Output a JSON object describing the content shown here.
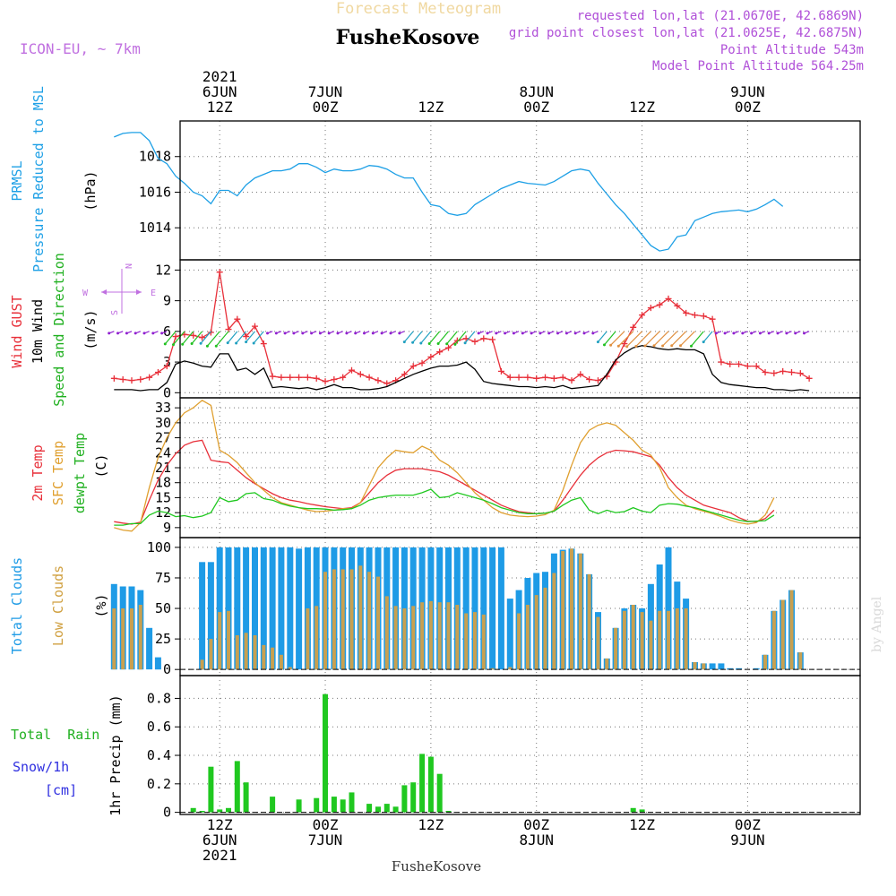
{
  "header": {
    "title": "Forecast Meteogram",
    "location": "FusheKosove",
    "model": "ICON-EU, ~ 7km",
    "requested": "requested lon,lat (21.0670E, 42.6869N)",
    "closest": "grid point closest lon,lat (21.0625E, 42.6875N)",
    "altitude": "Point Altitude 543m",
    "model_altitude": "Model Point Altitude 564.25m",
    "watermark": "by Angel",
    "footer": "FusheKosove"
  },
  "time_axis": {
    "top": [
      {
        "h": 12,
        "lines": [
          "2021",
          "6JUN",
          "12Z"
        ]
      },
      {
        "h": 24,
        "lines": [
          "7JUN",
          "00Z"
        ]
      },
      {
        "h": 36,
        "lines": [
          "12Z"
        ]
      },
      {
        "h": 48,
        "lines": [
          "8JUN",
          "00Z"
        ]
      },
      {
        "h": 60,
        "lines": [
          "12Z"
        ]
      },
      {
        "h": 72,
        "lines": [
          "9JUN",
          "00Z"
        ]
      }
    ],
    "bottom": [
      {
        "h": 12,
        "lines": [
          "12Z",
          "6JUN",
          "2021"
        ]
      },
      {
        "h": 24,
        "lines": [
          "00Z",
          "7JUN"
        ]
      },
      {
        "h": 36,
        "lines": [
          "12Z"
        ]
      },
      {
        "h": 48,
        "lines": [
          "00Z",
          "8JUN"
        ]
      },
      {
        "h": 60,
        "lines": [
          "12Z"
        ]
      },
      {
        "h": 72,
        "lines": [
          "00Z",
          "9JUN"
        ]
      }
    ]
  },
  "panels": {
    "pressure": {
      "label1": "PRMSL",
      "label2": "Pressure Reduced to MSL",
      "unit": "(hPa)",
      "color": "#1ea0e6"
    },
    "wind": {
      "label_gust": "Wind GUST",
      "label_wind": "10m Wind",
      "label_dir": "Speed and Direction",
      "unit": "(m/s)",
      "compass_n": "N",
      "compass_w": "W",
      "compass_e": "E",
      "compass_s": "S",
      "gust_color": "#e8303a",
      "wind_color": "#000000"
    },
    "temp": {
      "label_t": "2m Temp",
      "label_sfc": "SFC Temp",
      "label_dew": "dewpt Temp",
      "unit": "(C)",
      "t_color": "#e8303a",
      "sfc_color": "#e0a030",
      "dew_color": "#20c820"
    },
    "clouds": {
      "label_total": "Total Clouds",
      "label_low": "Low Clouds",
      "unit": "(%)",
      "total_color": "#1e9be6",
      "low_color": "#c8a050"
    },
    "precip": {
      "label_rain": "Total  Rain",
      "label_snow": "Snow/1h",
      "label_cm": "[cm]",
      "label_axis": "1hr Precip (mm)",
      "rain_color": "#20c820",
      "snow_color": "#3030e0"
    }
  },
  "chart_data": [
    {
      "type": "line",
      "name": "pressure",
      "x_start_hours_from_6JUN00Z": 0,
      "x_step_hours": 1,
      "ylim": [
        1012.2,
        1020
      ],
      "yticks": [
        1014,
        1016,
        1018
      ],
      "series": [
        {
          "name": "PRMSL",
          "values": [
            1019.1,
            1019.3,
            1019.35,
            1019.35,
            1018.9,
            1017.9,
            1017.6,
            1016.9,
            1016.5,
            1016.0,
            1015.8,
            1015.35,
            1016.1,
            1016.1,
            1015.8,
            1016.4,
            1016.8,
            1017.0,
            1017.2,
            1017.2,
            1017.3,
            1017.6,
            1017.6,
            1017.4,
            1017.1,
            1017.3,
            1017.2,
            1017.2,
            1017.3,
            1017.5,
            1017.45,
            1017.3,
            1017.0,
            1016.8,
            1016.8,
            1016.0,
            1015.3,
            1015.2,
            1014.8,
            1014.7,
            1014.8,
            1015.3,
            1015.6,
            1015.9,
            1016.2,
            1016.4,
            1016.6,
            1016.5,
            1016.45,
            1016.4,
            1016.6,
            1016.9,
            1017.2,
            1017.3,
            1017.2,
            1016.5,
            1015.9,
            1015.3,
            1014.8,
            1014.2,
            1013.6,
            1013.0,
            1012.7,
            1012.8,
            1013.5,
            1013.6,
            1014.4,
            1014.6,
            1014.8,
            1014.9,
            1014.95,
            1015.0,
            1014.9,
            1015.05,
            1015.3,
            1015.6,
            1015.2
          ]
        }
      ]
    },
    {
      "type": "line",
      "name": "wind",
      "x_start_hours_from_6JUN00Z": 0,
      "x_step_hours": 1,
      "ylim": [
        -0.5,
        13
      ],
      "yticks": [
        0,
        3,
        6,
        9,
        12
      ],
      "series": [
        {
          "name": "Wind GUST",
          "values": [
            1.4,
            1.3,
            1.2,
            1.3,
            1.5,
            2.0,
            2.6,
            5.5,
            5.7,
            5.6,
            5.4,
            5.9,
            11.8,
            6.2,
            7.2,
            5.5,
            6.5,
            4.8,
            1.6,
            1.5,
            1.5,
            1.5,
            1.5,
            1.4,
            1.1,
            1.3,
            1.5,
            2.2,
            1.8,
            1.5,
            1.2,
            0.9,
            1.2,
            1.8,
            2.6,
            2.9,
            3.5,
            4.0,
            4.4,
            5.1,
            5.3,
            5.0,
            5.3,
            5.2,
            2.1,
            1.5,
            1.5,
            1.5,
            1.4,
            1.5,
            1.4,
            1.5,
            1.2,
            1.8,
            1.3,
            1.2,
            1.6,
            3.0,
            4.8,
            6.4,
            7.6,
            8.3,
            8.6,
            9.2,
            8.5,
            7.8,
            7.6,
            7.5,
            7.2,
            3.0,
            2.8,
            2.8,
            2.6,
            2.6,
            2.0,
            1.9,
            2.1,
            2.0,
            1.9,
            1.4
          ]
        },
        {
          "name": "10m Wind",
          "values": [
            0.3,
            0.3,
            0.3,
            0.2,
            0.3,
            0.3,
            1.0,
            2.8,
            3.1,
            2.9,
            2.6,
            2.5,
            3.8,
            3.8,
            2.2,
            2.4,
            1.8,
            2.4,
            0.5,
            0.6,
            0.5,
            0.4,
            0.5,
            0.3,
            0.5,
            0.8,
            0.5,
            0.5,
            0.3,
            0.3,
            0.4,
            0.6,
            1.0,
            1.4,
            1.8,
            2.1,
            2.4,
            2.6,
            2.6,
            2.7,
            3.0,
            2.3,
            1.1,
            0.9,
            0.8,
            0.7,
            0.6,
            0.6,
            0.5,
            0.6,
            0.5,
            0.7,
            0.4,
            0.5,
            0.6,
            0.7,
            1.8,
            3.2,
            3.9,
            4.4,
            4.6,
            4.5,
            4.3,
            4.2,
            4.3,
            4.2,
            4.2,
            3.8,
            1.8,
            1.0,
            0.8,
            0.7,
            0.6,
            0.5,
            0.5,
            0.3,
            0.3,
            0.2,
            0.3,
            0.2
          ]
        }
      ]
    },
    {
      "type": "line",
      "name": "temperature",
      "x_start_hours_from_6JUN00Z": 0,
      "x_step_hours": 1,
      "ylim": [
        7,
        35
      ],
      "yticks": [
        9,
        12,
        15,
        18,
        21,
        24,
        27,
        30,
        33
      ],
      "series": [
        {
          "name": "2m Temp",
          "values": [
            10.2,
            9.9,
            9.7,
            10.1,
            14.5,
            18.5,
            21.5,
            23.8,
            25.5,
            26.2,
            26.5,
            22.5,
            22.2,
            22.0,
            20.5,
            19.0,
            17.8,
            16.8,
            15.8,
            15.0,
            14.5,
            14.2,
            13.8,
            13.5,
            13.2,
            13.0,
            12.8,
            13.0,
            14.0,
            16.0,
            18.0,
            19.5,
            20.5,
            20.8,
            20.8,
            20.8,
            20.5,
            20.2,
            19.5,
            18.5,
            17.5,
            16.5,
            15.5,
            14.5,
            13.5,
            12.8,
            12.2,
            12.0,
            11.8,
            11.9,
            12.3,
            14.5,
            17.0,
            19.5,
            21.5,
            23.0,
            24.0,
            24.5,
            24.4,
            24.2,
            23.7,
            23.2,
            21.5,
            19.0,
            17.0,
            15.5,
            14.5,
            13.5,
            13.0,
            12.5,
            12.0,
            11.0,
            10.3,
            10.2,
            10.8,
            12.5
          ]
        },
        {
          "name": "SFC Temp",
          "values": [
            9.0,
            8.5,
            8.3,
            10.0,
            17.0,
            23.0,
            27.0,
            30.0,
            32.0,
            33.0,
            34.5,
            33.5,
            24.5,
            23.5,
            22.0,
            20.0,
            18.0,
            16.5,
            15.0,
            14.0,
            13.5,
            13.0,
            12.5,
            12.2,
            12.3,
            12.5,
            12.8,
            12.8,
            14.0,
            17.5,
            21.0,
            23.0,
            24.5,
            24.2,
            24.0,
            25.3,
            24.5,
            22.5,
            21.5,
            20.0,
            18.0,
            16.0,
            14.5,
            13.0,
            12.0,
            11.5,
            11.3,
            11.2,
            11.3,
            11.6,
            12.5,
            16.5,
            21.5,
            26.0,
            28.5,
            29.5,
            30.0,
            29.5,
            28.0,
            26.5,
            24.5,
            23.5,
            21.0,
            17.0,
            15.0,
            13.5,
            12.8,
            12.3,
            11.8,
            11.2,
            10.5,
            10.0,
            9.7,
            10.0,
            11.5,
            15.0
          ]
        },
        {
          "name": "dewpt Temp",
          "values": [
            9.5,
            9.5,
            9.8,
            9.8,
            11.5,
            12.3,
            12.0,
            11.2,
            11.4,
            11.0,
            11.3,
            12.0,
            15.0,
            14.2,
            14.5,
            15.8,
            16.0,
            14.8,
            14.5,
            13.8,
            13.3,
            13.0,
            12.8,
            12.8,
            12.7,
            12.5,
            12.6,
            12.8,
            13.5,
            14.5,
            15.0,
            15.3,
            15.5,
            15.5,
            15.5,
            16.0,
            16.7,
            15.0,
            15.2,
            16.0,
            15.5,
            15.0,
            14.5,
            13.8,
            13.0,
            12.5,
            12.0,
            11.8,
            11.8,
            11.9,
            12.3,
            13.5,
            14.5,
            15.0,
            12.5,
            11.8,
            12.5,
            12.0,
            12.2,
            13.0,
            12.3,
            12.0,
            13.5,
            13.8,
            13.7,
            13.3,
            13.0,
            12.5,
            12.0,
            11.5,
            11.0,
            10.5,
            10.2,
            10.3,
            10.4,
            11.5
          ]
        }
      ]
    },
    {
      "type": "bar",
      "name": "clouds",
      "x_start_hours_from_6JUN00Z": 0,
      "x_step_hours": 1,
      "ylim": [
        -5,
        108
      ],
      "yticks": [
        0,
        25,
        50,
        75,
        100
      ],
      "series": [
        {
          "name": "Total Clouds",
          "values": [
            70,
            68,
            68,
            65,
            34,
            10,
            0,
            0,
            0,
            0,
            88,
            88,
            100,
            100,
            100,
            100,
            100,
            100,
            100,
            100,
            100,
            99,
            100,
            100,
            100,
            100,
            100,
            100,
            100,
            100,
            100,
            100,
            100,
            100,
            100,
            100,
            100,
            100,
            100,
            100,
            100,
            100,
            100,
            100,
            100,
            58,
            65,
            75,
            79,
            80,
            95,
            98,
            99,
            95,
            78,
            47,
            9,
            34,
            50,
            53,
            50,
            70,
            86,
            100,
            72,
            58,
            6,
            5,
            5,
            5,
            1,
            1,
            0,
            1,
            12,
            48,
            57,
            65,
            14
          ]
        },
        {
          "name": "Low Clouds",
          "values": [
            50,
            50,
            50,
            53,
            0,
            0,
            0,
            0,
            0,
            0,
            8,
            25,
            47,
            48,
            28,
            30,
            28,
            20,
            18,
            12,
            2,
            0,
            50,
            52,
            80,
            82,
            82,
            82,
            85,
            80,
            76,
            60,
            52,
            50,
            52,
            55,
            56,
            55,
            55,
            53,
            46,
            47,
            45,
            1,
            0,
            2,
            46,
            53,
            61,
            67,
            79,
            97,
            99,
            95,
            78,
            43,
            9,
            34,
            48,
            53,
            47,
            40,
            48,
            48,
            50,
            50,
            6,
            5,
            0,
            0,
            0,
            0,
            0,
            0,
            12,
            48,
            57,
            65,
            14
          ]
        }
      ]
    },
    {
      "type": "bar",
      "name": "precipitation",
      "x_start_hours_from_6JUN00Z": 0,
      "x_step_hours": 1,
      "ylim": [
        -0.015,
        0.96
      ],
      "yticks": [
        0,
        0.2,
        0.4,
        0.6,
        0.8
      ],
      "series": [
        {
          "name": "Total Rain",
          "values": [
            0,
            0,
            0,
            0,
            0,
            0,
            0,
            0,
            0,
            0.03,
            0.01,
            0.32,
            0.02,
            0.03,
            0.36,
            0.21,
            0,
            0,
            0.11,
            0,
            0,
            0.09,
            0,
            0.1,
            0.83,
            0.11,
            0.09,
            0.14,
            0,
            0.06,
            0.04,
            0.06,
            0.04,
            0.19,
            0.21,
            0.41,
            0.39,
            0.27,
            0.01,
            0,
            0,
            0,
            0,
            0,
            0,
            0,
            0,
            0,
            0,
            0,
            0,
            0,
            0,
            0,
            0,
            0,
            0,
            0,
            0,
            0.03,
            0.02,
            0,
            0,
            0,
            0,
            0,
            0,
            0,
            0,
            0,
            0,
            0,
            0,
            0,
            0,
            0,
            0,
            0
          ]
        }
      ]
    }
  ]
}
